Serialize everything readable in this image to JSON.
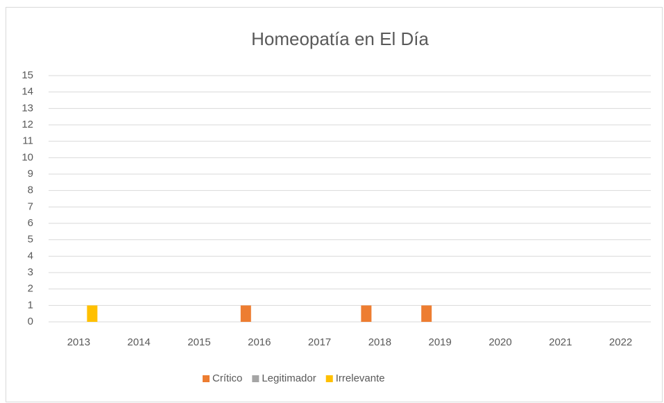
{
  "chart_data": {
    "type": "bar",
    "title": "Homeopatía en El Día",
    "categories": [
      "2013",
      "2014",
      "2015",
      "2016",
      "2017",
      "2018",
      "2019",
      "2020",
      "2021",
      "2022"
    ],
    "series": [
      {
        "name": "Crítico",
        "color": "#ed7d31",
        "values": [
          0,
          0,
          0,
          1,
          0,
          1,
          1,
          0,
          0,
          0
        ]
      },
      {
        "name": "Legitimador",
        "color": "#a5a5a5",
        "values": [
          0,
          0,
          0,
          0,
          0,
          0,
          0,
          0,
          0,
          0
        ]
      },
      {
        "name": "Irrelevante",
        "color": "#ffc000",
        "values": [
          1,
          0,
          0,
          0,
          0,
          0,
          0,
          0,
          0,
          0
        ]
      }
    ],
    "ylim": [
      0,
      15
    ],
    "yticks": [
      0,
      1,
      2,
      3,
      4,
      5,
      6,
      7,
      8,
      9,
      10,
      11,
      12,
      13,
      14,
      15
    ],
    "grid": true,
    "legend": "bottom"
  }
}
